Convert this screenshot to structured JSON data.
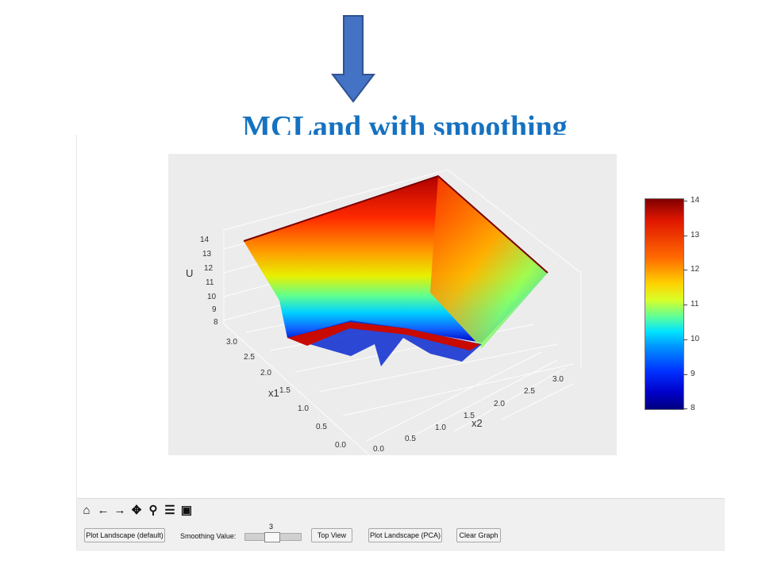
{
  "slide": {
    "title": "MCLand with smoothing",
    "arrow_color": "#4472c4"
  },
  "plot": {
    "z_axis_label": "U",
    "x1_axis_label": "x1",
    "x2_axis_label": "x2",
    "z_ticks": [
      "14",
      "13",
      "12",
      "11",
      "10",
      "9",
      "8"
    ],
    "x1_ticks": [
      "3.0",
      "2.5",
      "2.0",
      "1.5",
      "1.0",
      "0.5",
      "0.0"
    ],
    "x2_ticks": [
      "0.0",
      "0.5",
      "1.0",
      "1.5",
      "2.0",
      "2.5",
      "3.0"
    ],
    "colormap": "jet"
  },
  "colorbar": {
    "ticks": [
      "14",
      "13",
      "12",
      "11",
      "10",
      "9",
      "8"
    ],
    "min": 8,
    "max": 14
  },
  "toolbar": {
    "icons": [
      "home-icon",
      "back-arrow-icon",
      "forward-arrow-icon",
      "pan-icon",
      "zoom-icon",
      "configure-subplots-icon",
      "save-icon"
    ],
    "home_glyph": "⌂",
    "back_glyph": "←",
    "forward_glyph": "→",
    "pan_glyph": "✥",
    "zoom_glyph": "⚲",
    "config_glyph": "☰",
    "save_glyph": "▣"
  },
  "controls": {
    "plot_default_label": "Plot Landscape (default)",
    "smoothing_label": "Smoothing Value:",
    "smoothing_value": "3",
    "top_view_label": "Top View",
    "plot_pca_label": "Plot Landscape (PCA)",
    "clear_label": "Clear Graph"
  }
}
